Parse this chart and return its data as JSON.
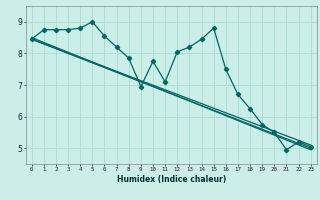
{
  "xlabel": "Humidex (Indice chaleur)",
  "background_color": "#cceee8",
  "grid_color": "#aaddcc",
  "line_color": "#006666",
  "x_min": -0.5,
  "x_max": 23.5,
  "y_min": 4.5,
  "y_max": 9.5,
  "zigzag_x": [
    0,
    1,
    2,
    3,
    4,
    5,
    6,
    7,
    8,
    9,
    10,
    11,
    12,
    13,
    14,
    15,
    16,
    17,
    18,
    19,
    20,
    21,
    22,
    23
  ],
  "zigzag_y": [
    8.45,
    8.75,
    8.75,
    8.75,
    8.8,
    9.0,
    8.55,
    8.2,
    7.85,
    6.95,
    7.75,
    7.1,
    8.05,
    8.2,
    8.45,
    8.8,
    7.5,
    6.7,
    6.25,
    5.75,
    5.5,
    4.95,
    5.2,
    5.05
  ],
  "straight_lines": [
    {
      "x0": 0,
      "y0": 8.45,
      "x1": 23,
      "y1": 5.1
    },
    {
      "x0": 0,
      "y0": 8.45,
      "x1": 23,
      "y1": 5.0
    },
    {
      "x0": 0,
      "y0": 8.5,
      "x1": 23,
      "y1": 4.95
    }
  ],
  "yticks": [
    5,
    6,
    7,
    8,
    9
  ],
  "xticks": [
    0,
    1,
    2,
    3,
    4,
    5,
    6,
    7,
    8,
    9,
    10,
    11,
    12,
    13,
    14,
    15,
    16,
    17,
    18,
    19,
    20,
    21,
    22,
    23
  ]
}
